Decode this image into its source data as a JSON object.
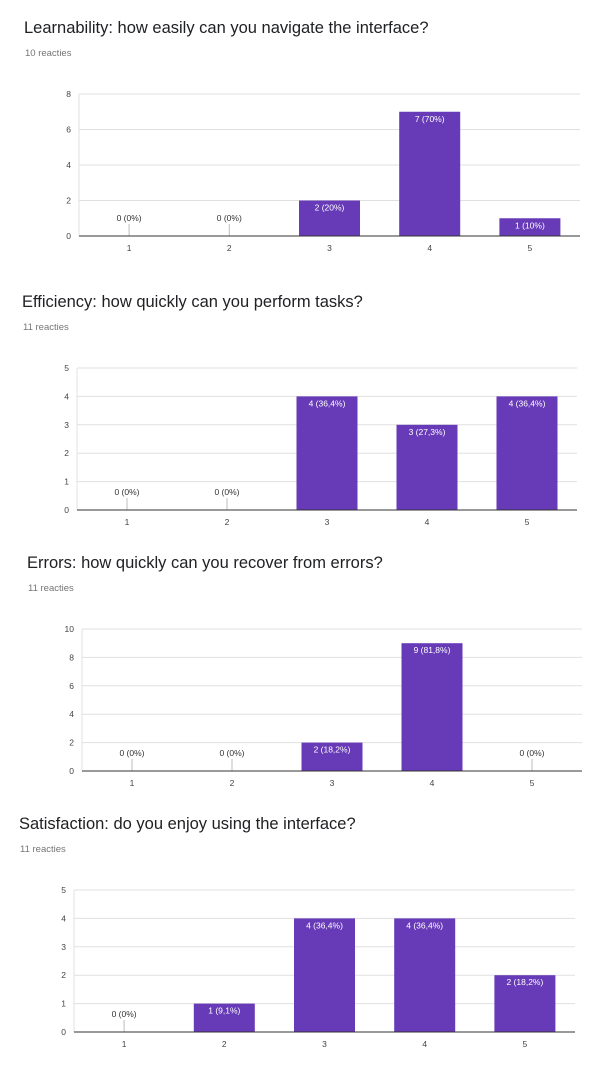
{
  "accent_color": "#673ab7",
  "charts": [
    {
      "title": "Learnability: how easily can you navigate the interface?",
      "subtitle": "10 reacties",
      "chart_data": {
        "type": "bar",
        "categories": [
          "1",
          "2",
          "3",
          "4",
          "5"
        ],
        "values": [
          0,
          0,
          2,
          7,
          1
        ],
        "data_labels": [
          "0 (0%)",
          "0 (0%)",
          "2 (20%)",
          "7 (70%)",
          "1 (10%)"
        ],
        "yticks": [
          "0",
          "2",
          "4",
          "6",
          "8"
        ],
        "ylim": [
          0,
          8
        ],
        "xlabel": "",
        "ylabel": "",
        "grid": true
      }
    },
    {
      "title": "Efficiency: how quickly can you perform tasks?",
      "subtitle": "11 reacties",
      "chart_data": {
        "type": "bar",
        "categories": [
          "1",
          "2",
          "3",
          "4",
          "5"
        ],
        "values": [
          0,
          0,
          4,
          3,
          4
        ],
        "data_labels": [
          "0 (0%)",
          "0 (0%)",
          "4 (36,4%)",
          "3 (27,3%)",
          "4 (36,4%)"
        ],
        "yticks": [
          "0",
          "1",
          "2",
          "3",
          "4",
          "5"
        ],
        "ylim": [
          0,
          5
        ],
        "xlabel": "",
        "ylabel": "",
        "grid": true
      }
    },
    {
      "title": "Errors: how quickly can you recover from errors?",
      "subtitle": "11 reacties",
      "chart_data": {
        "type": "bar",
        "categories": [
          "1",
          "2",
          "3",
          "4",
          "5"
        ],
        "values": [
          0,
          0,
          2,
          9,
          0
        ],
        "data_labels": [
          "0 (0%)",
          "0 (0%)",
          "2 (18,2%)",
          "9 (81,8%)",
          "0 (0%)"
        ],
        "yticks": [
          "0",
          "2",
          "4",
          "6",
          "8",
          "10"
        ],
        "ylim": [
          0,
          10
        ],
        "xlabel": "",
        "ylabel": "",
        "grid": true
      }
    },
    {
      "title": "Satisfaction: do you enjoy using the interface?",
      "subtitle": "11 reacties",
      "chart_data": {
        "type": "bar",
        "categories": [
          "1",
          "2",
          "3",
          "4",
          "5"
        ],
        "values": [
          0,
          1,
          4,
          4,
          2
        ],
        "data_labels": [
          "0 (0%)",
          "1 (9,1%)",
          "4 (36,4%)",
          "4 (36,4%)",
          "2 (18,2%)"
        ],
        "yticks": [
          "0",
          "1",
          "2",
          "3",
          "4",
          "5"
        ],
        "ylim": [
          0,
          5
        ],
        "xlabel": "",
        "ylabel": "",
        "grid": true
      }
    }
  ]
}
